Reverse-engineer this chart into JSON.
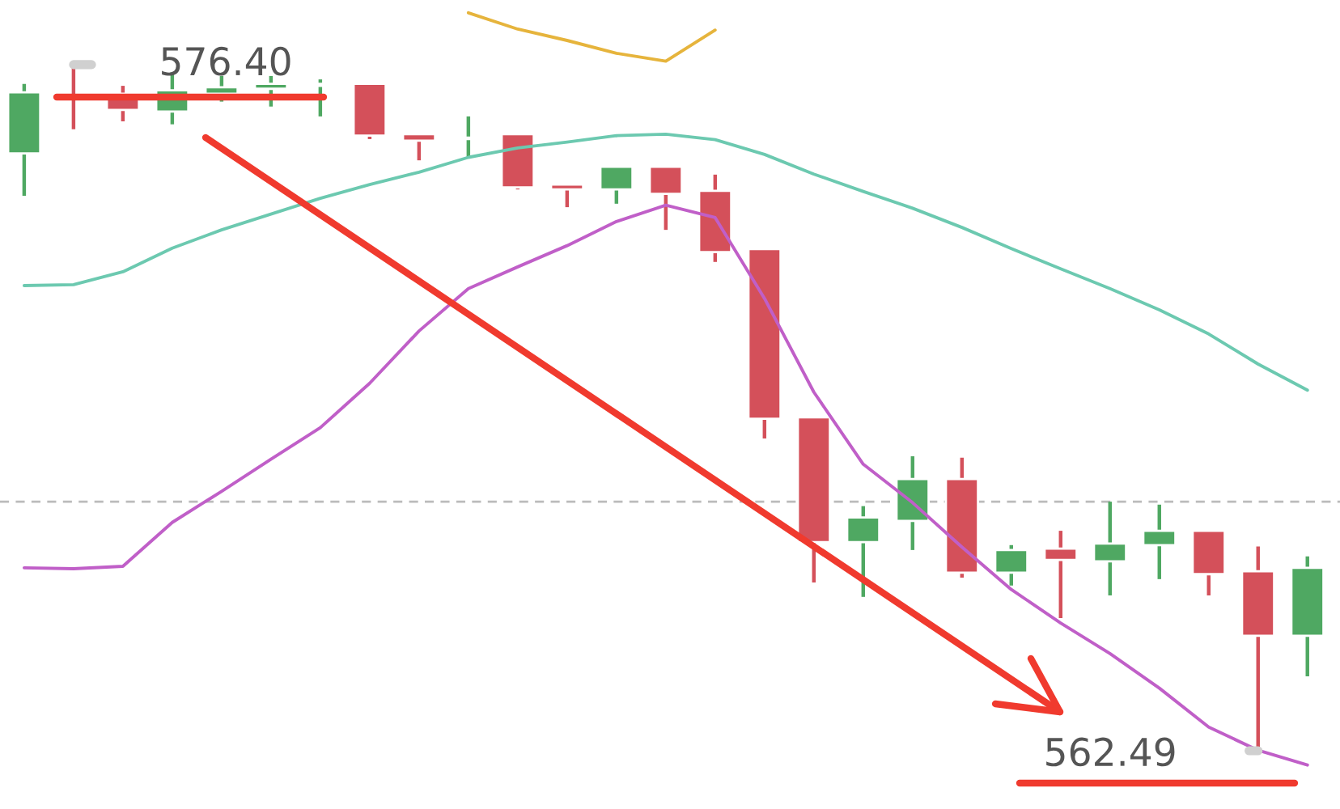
{
  "chart_data": {
    "type": "candlestick",
    "categories": [
      null,
      null,
      null,
      null,
      null,
      null,
      null,
      null,
      null,
      null,
      null,
      null,
      null,
      null,
      null,
      null,
      null,
      null,
      null,
      null,
      null,
      null,
      null,
      null,
      null,
      null,
      null
    ],
    "ylim": [
      561.31,
      577.71
    ],
    "tick_labels": false,
    "series": [
      {
        "type": "line",
        "color": "#e6b43c",
        "values": [
          null,
          null,
          null,
          null,
          null,
          null,
          null,
          null,
          null,
          577.45,
          577.12,
          576.89,
          576.63,
          576.47,
          577.1,
          null,
          null,
          null,
          null,
          null,
          null,
          null,
          null,
          null,
          null,
          null,
          null
        ]
      },
      {
        "type": "line",
        "color": "#6cc9b0",
        "values": [
          571.92,
          571.94,
          572.2,
          572.68,
          573.05,
          573.37,
          573.69,
          573.97,
          574.22,
          574.52,
          574.71,
          574.83,
          574.96,
          574.99,
          574.88,
          574.58,
          574.18,
          573.83,
          573.49,
          573.1,
          572.67,
          572.26,
          571.86,
          571.43,
          570.94,
          570.33,
          569.8
        ]
      },
      {
        "type": "line",
        "color": "#c05fc8",
        "values": [
          566.2,
          566.18,
          566.23,
          567.12,
          567.75,
          568.4,
          569.04,
          569.94,
          571.0,
          571.86,
          572.3,
          572.73,
          573.22,
          573.55,
          573.3,
          571.66,
          569.76,
          568.3,
          567.52,
          566.62,
          565.76,
          565.08,
          564.46,
          563.76,
          562.97,
          562.5,
          562.2
        ]
      },
      {
        "colors": [
          "#4fa862",
          "#d4505a",
          "#d4505a",
          "#4fa862",
          "#4fa862",
          "#4fa862",
          "#4fa862",
          "#d4505a",
          "#d4505a",
          "#4fa862",
          "#d4505a",
          "#d4505a",
          "#4fa862",
          "#d4505a",
          "#d4505a",
          "#d4505a",
          "#d4505a",
          "#4fa862",
          "#4fa862",
          "#d4505a",
          "#4fa862",
          "#d4505a",
          "#4fa862",
          "#4fa862",
          "#d4505a",
          "#d4505a",
          "#4fa862"
        ],
        "ohlc": [
          [
            574.6,
            576.01,
            573.74,
            575.84
          ],
          [
            575.74,
            576.4,
            575.09,
            575.71
          ],
          [
            575.81,
            575.97,
            575.25,
            575.48
          ],
          [
            575.45,
            576.24,
            575.19,
            575.88
          ],
          [
            575.81,
            576.17,
            575.65,
            575.94
          ],
          [
            575.91,
            576.17,
            575.55,
            576.01
          ],
          [
            575.97,
            576.1,
            575.35,
            576.01
          ],
          [
            576.01,
            576.01,
            574.89,
            574.96
          ],
          [
            574.99,
            574.99,
            574.46,
            574.86
          ],
          [
            574.89,
            575.35,
            574.5,
            574.92
          ],
          [
            574.99,
            574.99,
            573.87,
            573.91
          ],
          [
            573.97,
            573.97,
            573.51,
            573.87
          ],
          [
            573.87,
            574.33,
            573.58,
            574.33
          ],
          [
            574.33,
            574.33,
            573.05,
            573.78
          ],
          [
            573.84,
            574.17,
            572.4,
            572.6
          ],
          [
            572.66,
            572.66,
            568.82,
            569.22
          ],
          [
            569.25,
            569.25,
            565.9,
            566.72
          ],
          [
            566.72,
            567.45,
            565.61,
            567.22
          ],
          [
            567.15,
            568.46,
            566.56,
            568.0
          ],
          [
            568.0,
            568.43,
            566.0,
            566.1
          ],
          [
            566.1,
            566.66,
            565.84,
            566.56
          ],
          [
            566.59,
            566.95,
            565.18,
            566.36
          ],
          [
            566.33,
            567.54,
            565.64,
            566.69
          ],
          [
            566.66,
            567.48,
            565.97,
            566.95
          ],
          [
            566.95,
            566.95,
            565.64,
            566.07
          ],
          [
            566.13,
            566.63,
            562.49,
            564.82
          ],
          [
            564.82,
            566.43,
            564.0,
            566.2
          ]
        ]
      }
    ],
    "ref_lines": [
      {
        "axis": "y",
        "value": 567.54,
        "color": "#bbbbbb",
        "line_style": "dashed"
      }
    ],
    "annotations": [
      "576.40",
      "562.49"
    ]
  }
}
